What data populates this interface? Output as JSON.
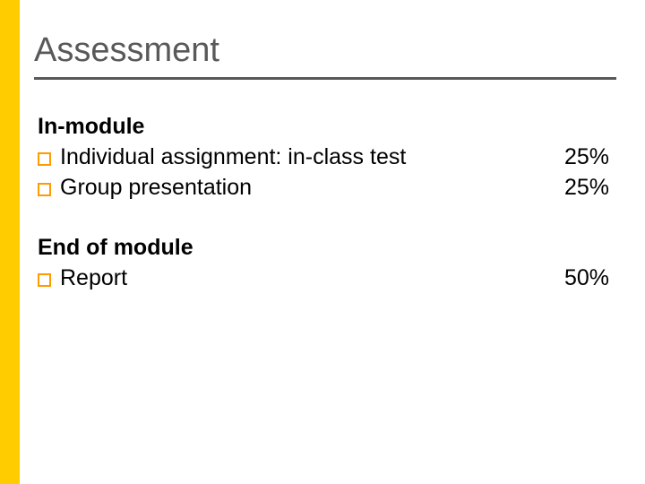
{
  "colors": {
    "stripe": "#ffcc00",
    "title_text": "#595959",
    "rule": "#595959",
    "body_text": "#000000",
    "bullet_border": "#ff9a00",
    "background": "#ffffff"
  },
  "title": "Assessment",
  "title_fontsize": 38,
  "body_fontsize": 25,
  "section1": {
    "heading": "In-module",
    "items": [
      {
        "text": "Individual assignment: in-class test",
        "pct": "25%"
      },
      {
        "text": "Group presentation",
        "pct": "25%"
      }
    ]
  },
  "section2": {
    "heading": "End of module",
    "items": [
      {
        "text": "Report",
        "pct": "50%"
      }
    ]
  }
}
